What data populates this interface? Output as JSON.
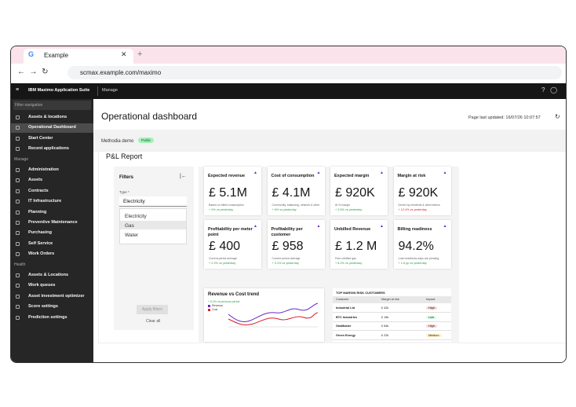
{
  "browser": {
    "tab_title": "Example",
    "url": "scmax.example.com/maximo"
  },
  "app": {
    "suite": "IBM Maximo Application Suite",
    "module": "Manage"
  },
  "sidebar": {
    "filter_placeholder": "Filter navigation",
    "active": 1,
    "top_items": [
      "Assets & locations",
      "Operational Dashboard",
      "Start Center",
      "Recent applications"
    ],
    "sections": [
      {
        "title": "Manage",
        "items": [
          "Administration",
          "Assets",
          "Contracts",
          "IT Infrastructure",
          "Planning",
          "Preventive Maintenance",
          "Purchasing",
          "Self Service",
          "Work Orders"
        ]
      },
      {
        "title": "Health",
        "items": [
          "Assets & Locations",
          "Work queues",
          "Asset investment optimizer",
          "Score settings",
          "Prediction settings"
        ]
      }
    ]
  },
  "header": {
    "title": "Operational dashboard",
    "last_updated": "Page last updated: 16/07/26 10:07:57",
    "workspace": "Methodia demo",
    "badge": "Public"
  },
  "report": {
    "title": "P&L Report",
    "filters": {
      "title": "Filters",
      "type_label": "Type *",
      "selected": "Electricity",
      "options": [
        "Electricity",
        "Gas",
        "Water"
      ],
      "apply": "Apply filters",
      "clear": "Clear all"
    },
    "kpis": [
      {
        "title": "Expected revenue",
        "value": "£ 5.1M",
        "note": "Based on billed consumption",
        "delta": "+ 4% vs yesterday",
        "delta_color": "#24a148"
      },
      {
        "title": "Cost of consumption",
        "value": "£ 4.1M",
        "note": "Commodity, balancing, network & other",
        "delta": "+ 6% vs yesterday",
        "delta_color": "#24a148"
      },
      {
        "title": "Expected margin",
        "value": "£ 920K",
        "note": "At % margin",
        "delta": "+ 3.5% vs yesterday",
        "delta_color": "#24a148"
      },
      {
        "title": "Margin at risk",
        "value": "£ 920K",
        "note": "Driven by residents & debt metrics",
        "delta": "+ 12.4% vs yesterday",
        "delta_color": "#da1e28"
      },
      {
        "title": "Profitability per meter point",
        "value": "£ 400",
        "note": "Current period average",
        "delta": "+ 2.2% vs yesterday",
        "delta_color": "#24a148"
      },
      {
        "title": "Profitability per customer",
        "value": "£ 958",
        "note": "Current period average",
        "delta": "+ 3.1% vs yesterday",
        "delta_color": "#24a148"
      },
      {
        "title": "Unbilled Revenue",
        "value": "£ 1.2 M",
        "note": "Free unbilled gas",
        "delta": "+ 8.2% vs yesterday",
        "delta_color": "#24a148"
      },
      {
        "title": "Billing readiness",
        "value": "94.2%",
        "note": "Load readiness days are pending",
        "delta": "+ 1.6 pp vs yesterday",
        "delta_color": "#24a148"
      }
    ],
    "trend": {
      "title": "Revenue vs Cost trend",
      "delta": "+ 5.2% vs previous period",
      "legend": [
        {
          "name": "Revenue",
          "color": "#6929c4"
        },
        {
          "name": "Cost",
          "color": "#da1e28"
        }
      ]
    },
    "table": {
      "title": "TOP MARGIN RISK CUSTOMERS",
      "columns": [
        "Customer",
        "Margin at risk",
        "Impact"
      ],
      "rows": [
        [
          "Industrial Ltd",
          "£ 42k",
          "High"
        ],
        [
          "BTC Industries",
          "£ 15k",
          "Low"
        ],
        [
          "GasMaster",
          "£ 64k",
          "High"
        ],
        [
          "Green Energy",
          "£ 22k",
          "Medium"
        ]
      ],
      "impact_colors": [
        "#ffd7d9",
        "#defbe6",
        "#ffd7d9",
        "#fff1c7"
      ]
    }
  }
}
